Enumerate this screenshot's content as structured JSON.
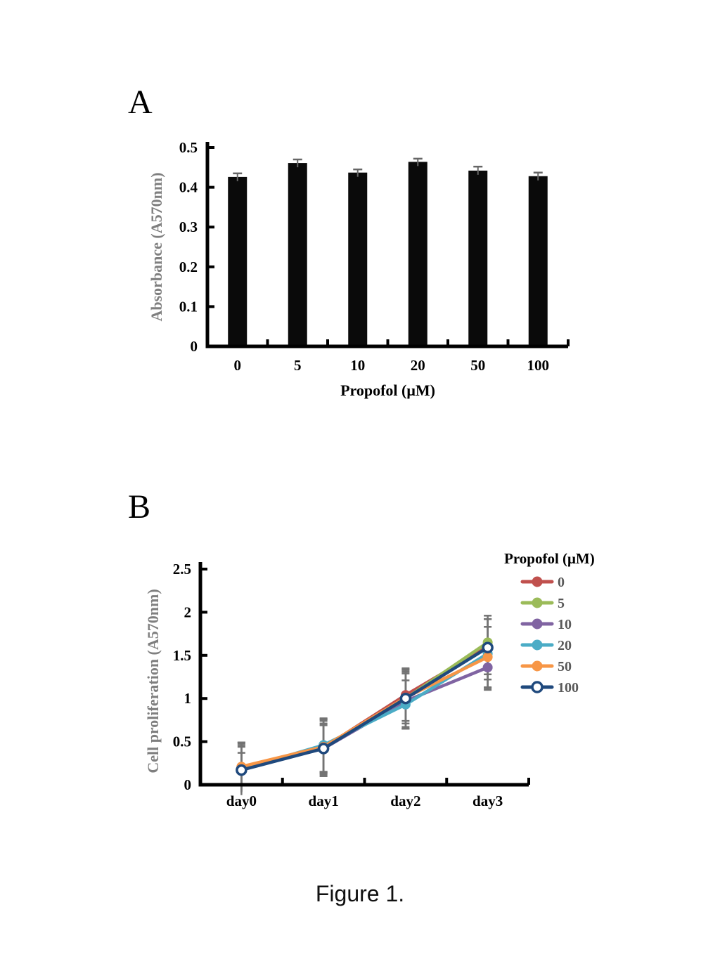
{
  "page": {
    "background": "#ffffff",
    "caption": "Figure 1."
  },
  "panels": {
    "a_label": "A",
    "b_label": "B"
  },
  "chart_data": [
    {
      "id": "propofol-absorbance-bar",
      "panel": "A",
      "type": "bar",
      "title": "",
      "xlabel": "Propofol (μM)",
      "ylabel": "Absorbance (A570nm)",
      "categories": [
        "0",
        "5",
        "10",
        "20",
        "50",
        "100"
      ],
      "values": [
        0.426,
        0.461,
        0.437,
        0.464,
        0.442,
        0.428
      ],
      "errors": [
        0.009,
        0.009,
        0.008,
        0.008,
        0.01,
        0.009
      ],
      "ylim": [
        0,
        0.5
      ],
      "yticks": [
        0,
        0.1,
        0.2,
        0.3,
        0.4,
        0.5
      ],
      "ytick_labels": [
        "0",
        "0.1",
        "0.2",
        "0.3",
        "0.4",
        "0.5"
      ],
      "grid": false,
      "legend": null,
      "bar_color": "#0a0a0a",
      "error_color": "#666666",
      "axis_color": "#000000",
      "tick_label_color": "#000000",
      "axis_title_color": "#7f7f7f",
      "xlabel_color": "#000000"
    },
    {
      "id": "cell-proliferation-line",
      "panel": "B",
      "type": "line",
      "title": "",
      "xlabel": "",
      "ylabel": "Cell proliferation (A570nm)",
      "categories": [
        "day0",
        "day1",
        "day2",
        "day3"
      ],
      "ylim": [
        0,
        2.5
      ],
      "yticks": [
        0,
        0.5,
        1,
        1.5,
        2,
        2.5
      ],
      "ytick_labels": [
        "0",
        "0.5",
        "1",
        "1.5",
        "2",
        "2.5"
      ],
      "grid": false,
      "legend_title": "Propofol (μM)",
      "legend_position": "right",
      "error_color": "#737373",
      "axis_color": "#000000",
      "tick_label_color": "#000000",
      "axis_title_color": "#7f7f7f",
      "legend_label_color": "#595959",
      "series": [
        {
          "name": "0",
          "color": "#C0504D",
          "marker": "filled",
          "values": [
            0.2,
            0.43,
            1.04,
            1.6
          ],
          "errors": [
            0.29,
            0.33,
            0.3,
            0.32
          ]
        },
        {
          "name": "5",
          "color": "#9BBB59",
          "marker": "filled",
          "values": [
            0.19,
            0.44,
            1.0,
            1.65
          ],
          "errors": [
            0.27,
            0.3,
            0.33,
            0.27
          ]
        },
        {
          "name": "10",
          "color": "#8064A2",
          "marker": "filled",
          "values": [
            0.18,
            0.42,
            0.97,
            1.36
          ],
          "errors": [
            0.26,
            0.29,
            0.32,
            0.26
          ]
        },
        {
          "name": "20",
          "color": "#4BACC6",
          "marker": "filled",
          "values": [
            0.18,
            0.46,
            0.93,
            1.52
          ],
          "errors": [
            0.3,
            0.31,
            0.28,
            0.4
          ]
        },
        {
          "name": "50",
          "color": "#F79646",
          "marker": "filled",
          "values": [
            0.21,
            0.44,
            1.01,
            1.48
          ],
          "errors": [
            0.28,
            0.32,
            0.3,
            0.35
          ]
        },
        {
          "name": "100",
          "color": "#1F497D",
          "marker": "open",
          "values": [
            0.17,
            0.42,
            1.0,
            1.59
          ],
          "errors": [
            0.2,
            0.27,
            0.35,
            0.37
          ]
        }
      ]
    }
  ]
}
